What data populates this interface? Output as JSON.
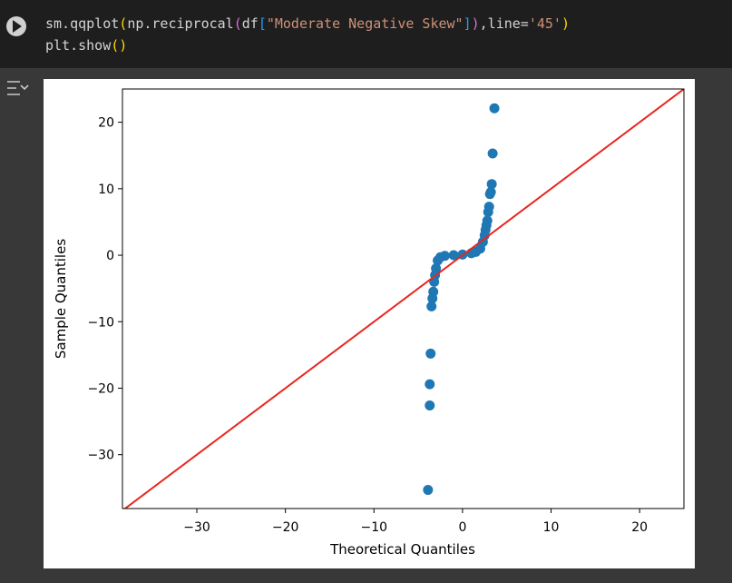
{
  "code": {
    "lines": [
      [
        {
          "t": "sm.qqplot",
          "k": "d"
        },
        {
          "t": "(",
          "k": "y"
        },
        {
          "t": "np.reciprocal",
          "k": "d"
        },
        {
          "t": "(",
          "k": "p"
        },
        {
          "t": "df",
          "k": "d"
        },
        {
          "t": "[",
          "k": "b"
        },
        {
          "t": "\"Moderate Negative Skew\"",
          "k": "s"
        },
        {
          "t": "]",
          "k": "b"
        },
        {
          "t": ")",
          "k": "p"
        },
        {
          "t": ",line=",
          "k": "d"
        },
        {
          "t": "'45'",
          "k": "s"
        },
        {
          "t": ")",
          "k": "y"
        }
      ],
      [
        {
          "t": "plt.show",
          "k": "d"
        },
        {
          "t": "()",
          "k": "y"
        }
      ]
    ]
  },
  "chart_data": {
    "type": "scatter",
    "xlabel": "Theoretical Quantiles",
    "ylabel": "Sample Quantiles",
    "color": "#1f77b4",
    "x": [
      3.6,
      3.4,
      3.3,
      3.2,
      3.1,
      3.0,
      2.9,
      2.8,
      2.7,
      2.6,
      2.5,
      2.3,
      2.0,
      1.5,
      1.0,
      0,
      -1.0,
      -2.0,
      -2.5,
      -2.8,
      -3.0,
      -3.1,
      -3.2,
      -3.3,
      -3.4,
      -3.5,
      -3.6,
      -3.7,
      -3.7,
      -3.9
    ],
    "values": [
      22.1,
      15.3,
      10.7,
      9.5,
      9.2,
      7.3,
      6.5,
      5.2,
      4.5,
      3.8,
      3.0,
      2.0,
      1.0,
      0.5,
      0.3,
      0.1,
      0.0,
      -0.1,
      -0.3,
      -0.8,
      -2.0,
      -3.0,
      -4.0,
      -5.5,
      -6.5,
      -7.7,
      -14.8,
      -19.4,
      -22.6,
      -35.3
    ],
    "xlim": [
      -38.4,
      25.0
    ],
    "ylim": [
      -38.1,
      25.0
    ],
    "xticks": [
      {
        "value": -30,
        "label": "−30"
      },
      {
        "value": -20,
        "label": "−20"
      },
      {
        "value": -10,
        "label": "−10"
      },
      0,
      10,
      20
    ],
    "yticks": [
      {
        "value": -30,
        "label": "−30"
      },
      {
        "value": -20,
        "label": "−20"
      },
      {
        "value": -10,
        "label": "−10"
      },
      0,
      10,
      20
    ],
    "reference_line": {
      "slope": 1,
      "color": "#e8261f"
    }
  }
}
